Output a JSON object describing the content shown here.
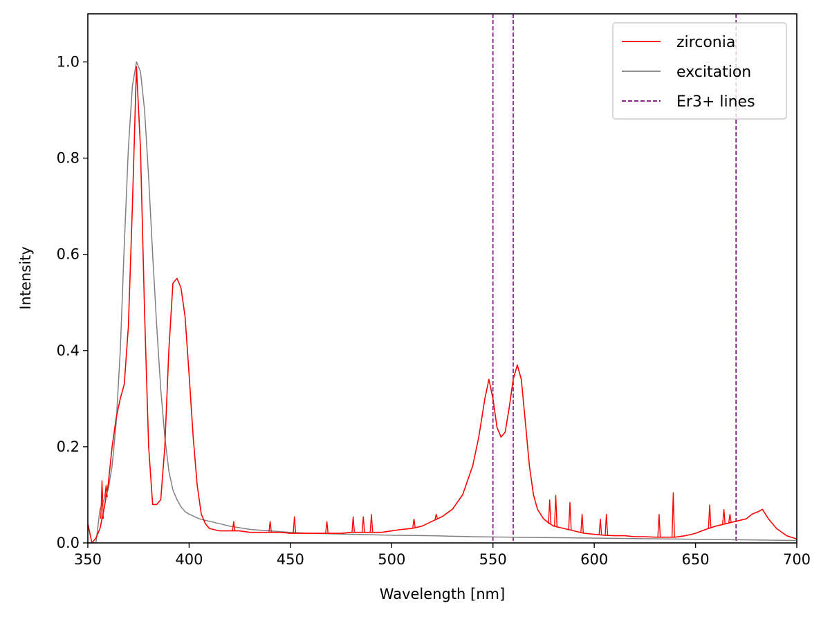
{
  "chart_data": {
    "type": "line",
    "title": "",
    "xlabel": "Wavelength [nm]",
    "ylabel": "Intensity",
    "xlim": [
      350,
      700
    ],
    "ylim": [
      0.0,
      1.1
    ],
    "xticks": [
      350,
      400,
      450,
      500,
      550,
      600,
      650,
      700
    ],
    "yticks": [
      0.0,
      0.2,
      0.4,
      0.6,
      0.8,
      1.0
    ],
    "xtick_labels": [
      "350",
      "400",
      "450",
      "500",
      "550",
      "600",
      "650",
      "700"
    ],
    "ytick_labels": [
      "0.0",
      "0.2",
      "0.4",
      "0.6",
      "0.8",
      "1.0"
    ],
    "grid": false,
    "legend_position": "top-right",
    "colors": {
      "zirconia": "#ff0000",
      "excitation": "#808080",
      "er_lines": "#800080"
    },
    "series": [
      {
        "name": "zirconia",
        "style": "solid",
        "x": [
          350,
          352,
          354,
          356,
          358,
          360,
          362,
          364,
          366,
          368,
          370,
          372,
          374,
          376,
          378,
          380,
          382,
          384,
          386,
          388,
          390,
          392,
          394,
          396,
          398,
          400,
          402,
          404,
          406,
          408,
          410,
          415,
          420,
          425,
          430,
          435,
          440,
          445,
          450,
          455,
          460,
          465,
          470,
          475,
          480,
          485,
          490,
          495,
          500,
          505,
          510,
          515,
          520,
          525,
          530,
          535,
          540,
          543,
          546,
          548,
          550,
          552,
          554,
          556,
          558,
          560,
          562,
          564,
          566,
          568,
          570,
          572,
          575,
          578,
          580,
          585,
          590,
          595,
          600,
          605,
          610,
          615,
          620,
          625,
          630,
          635,
          640,
          645,
          650,
          655,
          660,
          665,
          670,
          675,
          678,
          681,
          683,
          686,
          690,
          695,
          700
        ],
        "y": [
          0.04,
          0.0,
          0.01,
          0.03,
          0.07,
          0.12,
          0.2,
          0.26,
          0.3,
          0.33,
          0.45,
          0.7,
          0.99,
          0.82,
          0.48,
          0.2,
          0.08,
          0.08,
          0.09,
          0.2,
          0.4,
          0.54,
          0.55,
          0.53,
          0.47,
          0.35,
          0.22,
          0.12,
          0.06,
          0.04,
          0.03,
          0.025,
          0.025,
          0.025,
          0.022,
          0.022,
          0.022,
          0.022,
          0.02,
          0.02,
          0.02,
          0.02,
          0.02,
          0.02,
          0.022,
          0.022,
          0.022,
          0.022,
          0.025,
          0.028,
          0.03,
          0.035,
          0.045,
          0.055,
          0.07,
          0.1,
          0.16,
          0.22,
          0.3,
          0.34,
          0.3,
          0.24,
          0.22,
          0.23,
          0.28,
          0.34,
          0.37,
          0.34,
          0.25,
          0.16,
          0.1,
          0.07,
          0.05,
          0.04,
          0.035,
          0.03,
          0.025,
          0.02,
          0.018,
          0.016,
          0.015,
          0.015,
          0.013,
          0.013,
          0.012,
          0.012,
          0.012,
          0.015,
          0.02,
          0.028,
          0.035,
          0.04,
          0.045,
          0.05,
          0.06,
          0.065,
          0.07,
          0.05,
          0.03,
          0.015,
          0.008
        ]
      },
      {
        "name": "excitation",
        "style": "solid",
        "x": [
          350,
          352,
          354,
          356,
          358,
          360,
          362,
          364,
          366,
          368,
          370,
          372,
          374,
          376,
          378,
          380,
          382,
          384,
          386,
          388,
          390,
          392,
          394,
          396,
          398,
          400,
          405,
          410,
          420,
          430,
          440,
          450,
          460,
          480,
          500,
          520,
          540,
          560,
          580,
          600,
          620,
          640,
          660,
          680,
          700
        ],
        "y": [
          0.0,
          0.0,
          0.0,
          0.07,
          0.09,
          0.11,
          0.16,
          0.25,
          0.4,
          0.62,
          0.82,
          0.95,
          1.0,
          0.98,
          0.9,
          0.76,
          0.6,
          0.45,
          0.32,
          0.22,
          0.15,
          0.11,
          0.09,
          0.075,
          0.065,
          0.06,
          0.05,
          0.045,
          0.035,
          0.028,
          0.025,
          0.022,
          0.02,
          0.018,
          0.016,
          0.015,
          0.013,
          0.012,
          0.011,
          0.01,
          0.009,
          0.008,
          0.007,
          0.006,
          0.005
        ]
      }
    ],
    "spikes": [
      {
        "series": "zirconia",
        "x": 357,
        "y": 0.13
      },
      {
        "series": "zirconia",
        "x": 359,
        "y": 0.12
      },
      {
        "series": "zirconia",
        "x": 422,
        "y": 0.045
      },
      {
        "series": "zirconia",
        "x": 440,
        "y": 0.045
      },
      {
        "series": "zirconia",
        "x": 452,
        "y": 0.055
      },
      {
        "series": "zirconia",
        "x": 468,
        "y": 0.045
      },
      {
        "series": "zirconia",
        "x": 481,
        "y": 0.055
      },
      {
        "series": "zirconia",
        "x": 486,
        "y": 0.055
      },
      {
        "series": "zirconia",
        "x": 490,
        "y": 0.06
      },
      {
        "series": "zirconia",
        "x": 511,
        "y": 0.05
      },
      {
        "series": "zirconia",
        "x": 522,
        "y": 0.06
      },
      {
        "series": "zirconia",
        "x": 578,
        "y": 0.09
      },
      {
        "series": "zirconia",
        "x": 581,
        "y": 0.1
      },
      {
        "series": "zirconia",
        "x": 588,
        "y": 0.085
      },
      {
        "series": "zirconia",
        "x": 594,
        "y": 0.06
      },
      {
        "series": "zirconia",
        "x": 603,
        "y": 0.05
      },
      {
        "series": "zirconia",
        "x": 606,
        "y": 0.06
      },
      {
        "series": "zirconia",
        "x": 632,
        "y": 0.06
      },
      {
        "series": "zirconia",
        "x": 639,
        "y": 0.105
      },
      {
        "series": "zirconia",
        "x": 657,
        "y": 0.08
      },
      {
        "series": "zirconia",
        "x": 664,
        "y": 0.07
      },
      {
        "series": "zirconia",
        "x": 667,
        "y": 0.06
      }
    ],
    "vlines": {
      "name": "Er3+ lines",
      "style": "dashed",
      "x": [
        550,
        560,
        670
      ]
    },
    "legend": [
      "zirconia",
      "excitation",
      "Er3+ lines"
    ]
  }
}
